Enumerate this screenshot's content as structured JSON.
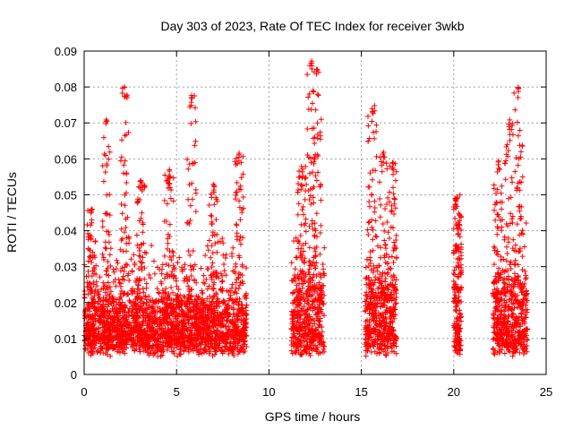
{
  "chart_data": {
    "type": "scatter",
    "title": "Day 303 of 2023, Rate Of TEC Index for receiver 3wkb",
    "xlabel": "GPS time / hours",
    "ylabel": "ROTI / TECUs",
    "xlim": [
      0,
      25
    ],
    "ylim": [
      0,
      0.09
    ],
    "xticks": [
      0,
      5,
      10,
      15,
      20,
      25
    ],
    "yticks": [
      0,
      0.01,
      0.02,
      0.03,
      0.04,
      0.05,
      0.06,
      0.07,
      0.08,
      0.09
    ],
    "grid": true,
    "marker": "+",
    "color": "#ff0000",
    "segments": [
      {
        "start": 0.0,
        "end": 8.8,
        "base_mean": 0.013,
        "spread": 0.013,
        "peak_hours": [
          0.4,
          1.2,
          2.2,
          3.1,
          4.6,
          5.8,
          7.0,
          8.4
        ],
        "peak_values": [
          0.046,
          0.071,
          0.08,
          0.055,
          0.057,
          0.078,
          0.053,
          0.062
        ]
      },
      {
        "start": 11.2,
        "end": 13.0,
        "base_mean": 0.013,
        "spread": 0.02,
        "peak_hours": [
          11.8,
          12.3,
          12.6
        ],
        "peak_values": [
          0.058,
          0.088,
          0.085
        ]
      },
      {
        "start": 15.2,
        "end": 16.9,
        "base_mean": 0.012,
        "spread": 0.018,
        "peak_hours": [
          15.6,
          16.2,
          16.7
        ],
        "peak_values": [
          0.075,
          0.062,
          0.059
        ]
      },
      {
        "start": 20.0,
        "end": 20.4,
        "base_mean": 0.01,
        "spread": 0.015,
        "peak_hours": [
          20.1,
          20.3
        ],
        "peak_values": [
          0.05,
          0.045
        ]
      },
      {
        "start": 22.1,
        "end": 24.0,
        "base_mean": 0.013,
        "spread": 0.018,
        "peak_hours": [
          22.4,
          23.0,
          23.5
        ],
        "peak_values": [
          0.06,
          0.071,
          0.081
        ]
      }
    ]
  }
}
